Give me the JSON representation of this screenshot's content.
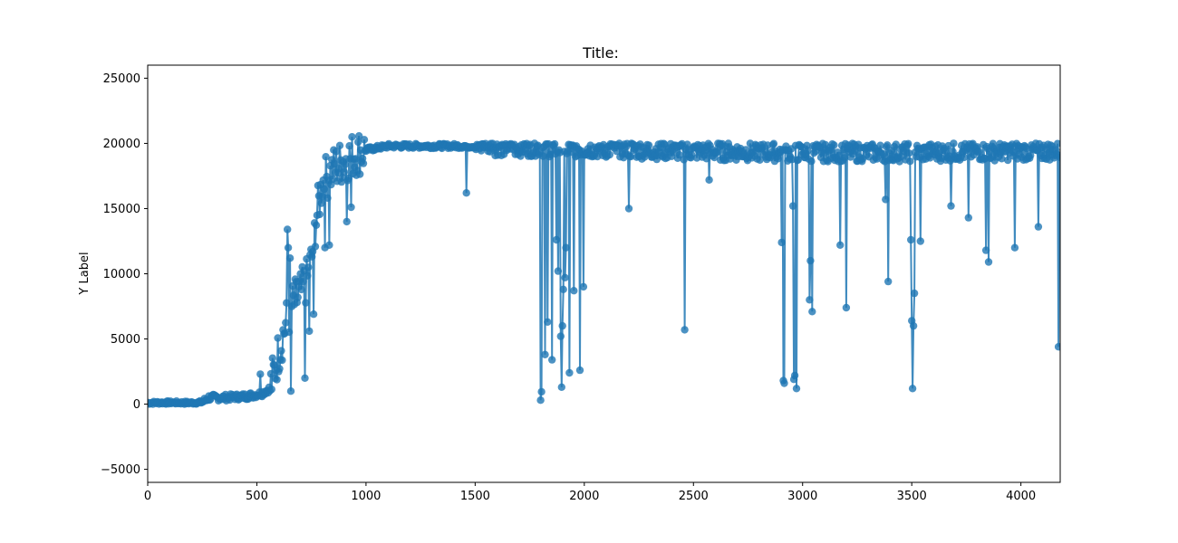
{
  "chart_data": {
    "type": "line",
    "title": "Title:",
    "xlabel": "",
    "ylabel": "Y Label",
    "xlim": [
      0,
      4180
    ],
    "ylim": [
      -6000,
      26000
    ],
    "xticks": [
      0,
      500,
      1000,
      1500,
      2000,
      2500,
      3000,
      3500,
      4000
    ],
    "yticks": [
      -5000,
      0,
      5000,
      10000,
      15000,
      20000,
      25000
    ],
    "grid": false,
    "legend": "none",
    "series": [
      {
        "color": "#1f77b4",
        "marker": "circle",
        "baseline": [
          [
            0,
            100
          ],
          [
            100,
            120
          ],
          [
            200,
            100
          ],
          [
            250,
            150
          ],
          [
            280,
            500
          ],
          [
            350,
            500
          ],
          [
            450,
            600
          ],
          [
            520,
            800
          ],
          [
            560,
            1200
          ],
          [
            580,
            2500
          ],
          [
            600,
            4000
          ],
          [
            630,
            6000
          ],
          [
            660,
            7500
          ],
          [
            700,
            8500
          ],
          [
            730,
            9500
          ],
          [
            750,
            11000
          ],
          [
            770,
            14000
          ],
          [
            800,
            17000
          ],
          [
            850,
            18000
          ],
          [
            900,
            18700
          ],
          [
            950,
            19200
          ],
          [
            1000,
            19500
          ],
          [
            1100,
            19800
          ],
          [
            1500,
            19800
          ],
          [
            2000,
            19600
          ],
          [
            2500,
            19400
          ],
          [
            3000,
            19300
          ],
          [
            3500,
            19300
          ],
          [
            4000,
            19400
          ],
          [
            4180,
            19400
          ]
        ],
        "spikes": [
          [
            514,
            2300
          ],
          [
            640,
            13400
          ],
          [
            645,
            12000
          ],
          [
            650,
            11200
          ],
          [
            655,
            1000
          ],
          [
            690,
            9000
          ],
          [
            720,
            2000
          ],
          [
            740,
            5600
          ],
          [
            760,
            6900
          ],
          [
            810,
            12000
          ],
          [
            830,
            12200
          ],
          [
            910,
            14000
          ],
          [
            930,
            15100
          ],
          [
            1460,
            16200
          ],
          [
            1800,
            300
          ],
          [
            1805,
            950
          ],
          [
            1820,
            3800
          ],
          [
            1830,
            6300
          ],
          [
            1850,
            3400
          ],
          [
            1870,
            12600
          ],
          [
            1880,
            10200
          ],
          [
            1890,
            5200
          ],
          [
            1895,
            1300
          ],
          [
            1900,
            6000
          ],
          [
            1905,
            8800
          ],
          [
            1910,
            9700
          ],
          [
            1915,
            12000
          ],
          [
            1930,
            2400
          ],
          [
            1950,
            8700
          ],
          [
            1980,
            2600
          ],
          [
            1995,
            9000
          ],
          [
            2205,
            15000
          ],
          [
            2460,
            5700
          ],
          [
            2570,
            17200
          ],
          [
            2905,
            12400
          ],
          [
            2910,
            3000
          ],
          [
            2912,
            1800
          ],
          [
            2915,
            1600
          ],
          [
            2955,
            15200
          ],
          [
            2960,
            1900
          ],
          [
            2965,
            2200
          ],
          [
            2970,
            1200
          ],
          [
            3030,
            8000
          ],
          [
            3035,
            11000
          ],
          [
            3045,
            7100
          ],
          [
            3170,
            12200
          ],
          [
            3200,
            7400
          ],
          [
            3390,
            9400
          ],
          [
            3380,
            15700
          ],
          [
            3495,
            13200
          ],
          [
            3497,
            12600
          ],
          [
            3499,
            10800
          ],
          [
            3500,
            7300
          ],
          [
            3501,
            6400
          ],
          [
            3502,
            3900
          ],
          [
            3503,
            1700
          ],
          [
            3504,
            1400
          ],
          [
            3505,
            1200
          ],
          [
            3507,
            6000
          ],
          [
            3510,
            9300
          ],
          [
            3512,
            8500
          ],
          [
            3540,
            12500
          ],
          [
            3680,
            15200
          ],
          [
            3760,
            14300
          ],
          [
            3840,
            11800
          ],
          [
            3850,
            10900
          ],
          [
            3970,
            12000
          ],
          [
            4080,
            13600
          ],
          [
            4170,
            4400
          ]
        ]
      }
    ]
  }
}
